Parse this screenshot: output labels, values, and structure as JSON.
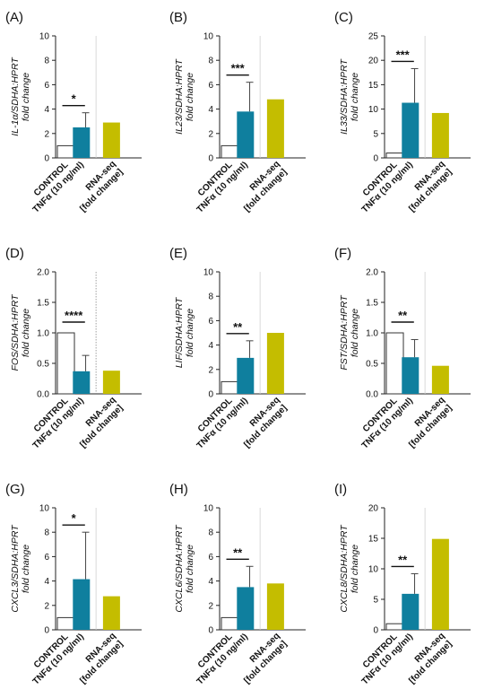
{
  "chart_data": [
    {
      "panel": "(A)",
      "type": "bar",
      "ylabel": "IL-1α/SDHA:HPRT",
      "ylabel2": "fold change",
      "categories": [
        "CONTROL",
        "TNFα (10 ng/ml)",
        "RNA-seq [fold change]"
      ],
      "values": [
        1.0,
        2.5,
        2.9
      ],
      "error": [
        0,
        1.2,
        0
      ],
      "ylim": [
        0,
        10
      ],
      "yticks": [
        0,
        2,
        4,
        6,
        8,
        10
      ],
      "significance": "*",
      "colors": [
        "#ffffff",
        "#0f7f9e",
        "#c4bd00"
      ]
    },
    {
      "panel": "(B)",
      "type": "bar",
      "ylabel": "IL23/SDHA:HPRT",
      "ylabel2": "fold change",
      "categories": [
        "CONTROL",
        "TNFα (10 ng/ml)",
        "RNA-seq [fold change]"
      ],
      "values": [
        1.0,
        3.8,
        4.8
      ],
      "error": [
        0,
        2.4,
        0
      ],
      "ylim": [
        0,
        10
      ],
      "yticks": [
        0,
        2,
        4,
        6,
        8,
        10
      ],
      "significance": "***",
      "colors": [
        "#ffffff",
        "#0f7f9e",
        "#c4bd00"
      ]
    },
    {
      "panel": "(C)",
      "type": "bar",
      "ylabel": "IL33/SDHA:HPRT",
      "ylabel2": "fold change",
      "categories": [
        "CONTROL",
        "TNFα (10 ng/ml)",
        "RNA-seq [fold change]"
      ],
      "values": [
        1.0,
        11.3,
        9.2
      ],
      "error": [
        0,
        7.0,
        0
      ],
      "ylim": [
        0,
        25
      ],
      "yticks": [
        0,
        5,
        10,
        15,
        20,
        25
      ],
      "significance": "***",
      "colors": [
        "#ffffff",
        "#0f7f9e",
        "#c4bd00"
      ]
    },
    {
      "panel": "(D)",
      "type": "bar",
      "ylabel": "FOS/SDHA:HPRT",
      "ylabel2": "fold change",
      "categories": [
        "CONTROL",
        "TNFα (10 ng/ml)",
        "RNA-seq [fold change]"
      ],
      "values": [
        1.0,
        0.37,
        0.38
      ],
      "error": [
        0,
        0.26,
        0
      ],
      "ylim": [
        0,
        2.0
      ],
      "yticks": [
        "0.0",
        "0.5",
        "1.0",
        "1.5",
        "2.0"
      ],
      "significance": "****",
      "colors": [
        "#ffffff",
        "#0f7f9e",
        "#c4bd00"
      ]
    },
    {
      "panel": "(E)",
      "type": "bar",
      "ylabel": "LIF/SDHA:HPRT",
      "ylabel2": "fold change",
      "categories": [
        "CONTROL",
        "TNFα (10 ng/ml)",
        "RNA-seq [fold change]"
      ],
      "values": [
        1.0,
        2.95,
        5.0
      ],
      "error": [
        0,
        1.4,
        0
      ],
      "ylim": [
        0,
        10
      ],
      "yticks": [
        0,
        2,
        4,
        6,
        8,
        10
      ],
      "significance": "**",
      "colors": [
        "#ffffff",
        "#0f7f9e",
        "#c4bd00"
      ]
    },
    {
      "panel": "(F)",
      "type": "bar",
      "ylabel": "FST/SDHA:HPRT",
      "ylabel2": "fold change",
      "categories": [
        "CONTROL",
        "TNFα (10 ng/ml)",
        "RNA-seq [fold change]"
      ],
      "values": [
        1.0,
        0.6,
        0.46
      ],
      "error": [
        0,
        0.29,
        0
      ],
      "ylim": [
        0,
        2.0
      ],
      "yticks": [
        "0.0",
        "0.5",
        "1.0",
        "1.5",
        "2.0"
      ],
      "significance": "**",
      "colors": [
        "#ffffff",
        "#0f7f9e",
        "#c4bd00"
      ]
    },
    {
      "panel": "(G)",
      "type": "bar",
      "ylabel": "CXCL3/SDHA:HPRT",
      "ylabel2": "fold change",
      "categories": [
        "CONTROL",
        "TNFα (10 ng/ml)",
        "RNA-seq [fold change]"
      ],
      "values": [
        1.0,
        4.15,
        2.75
      ],
      "error": [
        0,
        3.85,
        0
      ],
      "ylim": [
        0,
        10
      ],
      "yticks": [
        0,
        2,
        4,
        6,
        8,
        10
      ],
      "significance": "*",
      "colors": [
        "#ffffff",
        "#0f7f9e",
        "#c4bd00"
      ]
    },
    {
      "panel": "(H)",
      "type": "bar",
      "ylabel": "CXCL6/SDHA:HPRT",
      "ylabel2": "fold change",
      "categories": [
        "CONTROL",
        "TNFα (10 ng/ml)",
        "RNA-seq [fold change]"
      ],
      "values": [
        1.0,
        3.5,
        3.8
      ],
      "error": [
        0,
        1.7,
        0
      ],
      "ylim": [
        0,
        10
      ],
      "yticks": [
        0,
        2,
        4,
        6,
        8,
        10
      ],
      "significance": "**",
      "colors": [
        "#ffffff",
        "#0f7f9e",
        "#c4bd00"
      ]
    },
    {
      "panel": "(I)",
      "type": "bar",
      "ylabel": "CXCL8/SDHA:HPRT",
      "ylabel2": "fold change",
      "categories": [
        "CONTROL",
        "TNFα (10 ng/ml)",
        "RNA-seq [fold change]"
      ],
      "values": [
        1.0,
        5.9,
        14.9
      ],
      "error": [
        0,
        3.3,
        0
      ],
      "ylim": [
        0,
        20
      ],
      "yticks": [
        0,
        5,
        10,
        15,
        20
      ],
      "significance": "**",
      "colors": [
        "#ffffff",
        "#0f7f9e",
        "#c4bd00"
      ]
    }
  ]
}
